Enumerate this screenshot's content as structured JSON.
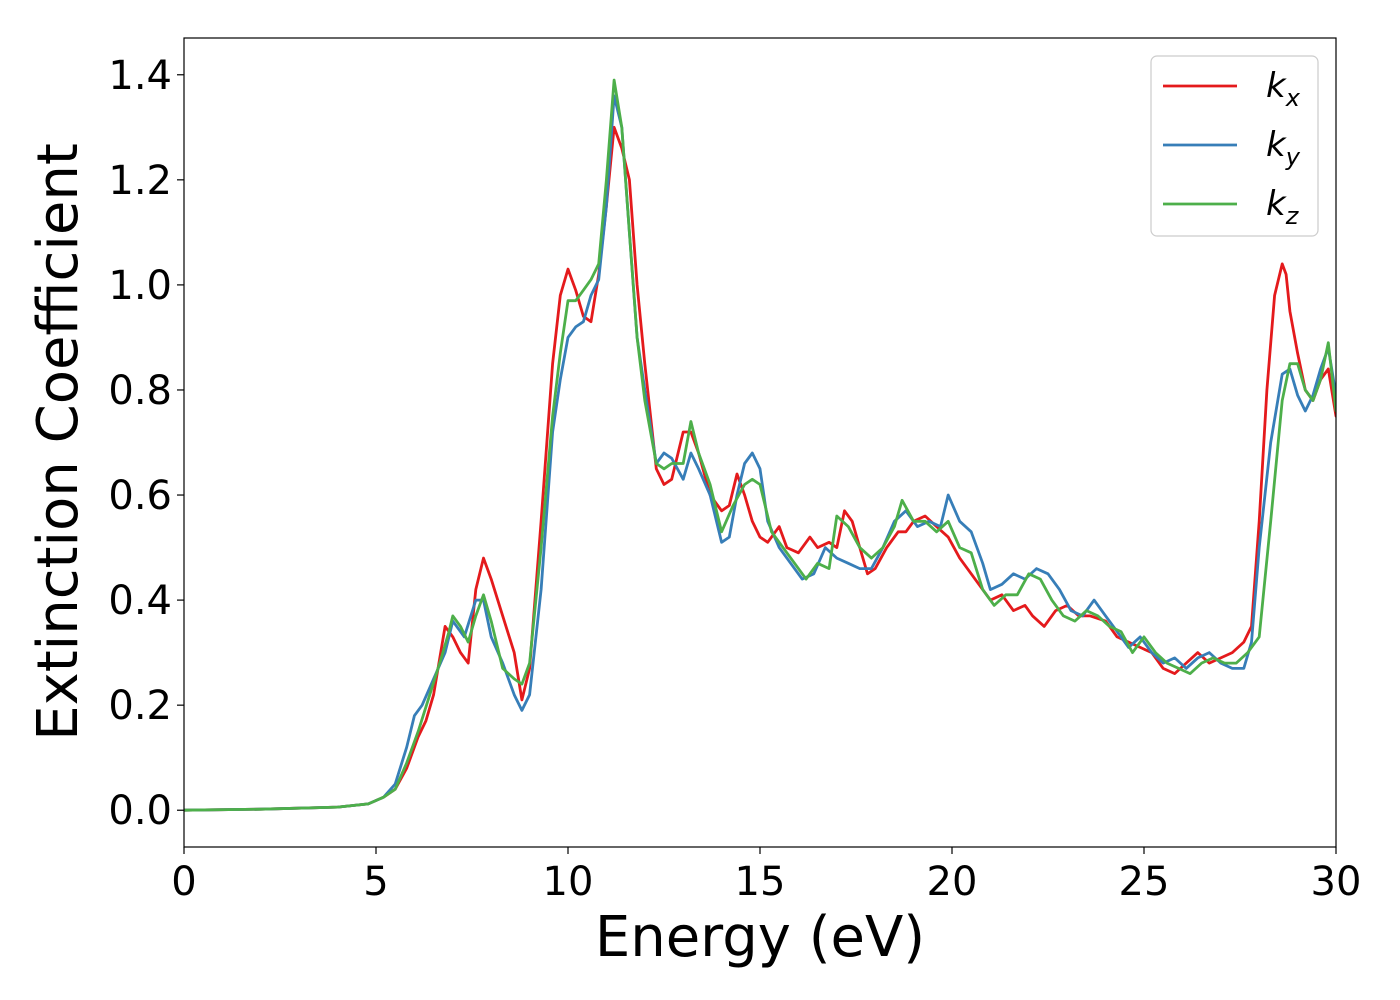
{
  "chart_data": {
    "type": "line",
    "title": "",
    "xlabel": "Energy (eV)",
    "ylabel": "Extinction Coefficient",
    "xlim": [
      0,
      30
    ],
    "ylim": [
      -0.07,
      1.47
    ],
    "xticks": [
      0,
      5,
      10,
      15,
      20,
      25,
      30
    ],
    "xtick_labels": [
      "0",
      "5",
      "10",
      "15",
      "20",
      "25",
      "30"
    ],
    "yticks": [
      0.0,
      0.2,
      0.4,
      0.6,
      0.8,
      1.0,
      1.2,
      1.4
    ],
    "ytick_labels": [
      "0.0",
      "0.2",
      "0.4",
      "0.6",
      "0.8",
      "1.0",
      "1.2",
      "1.4"
    ],
    "grid": false,
    "legend_position": "top-right",
    "series": [
      {
        "name": "k",
        "subscript": "x",
        "color": "#e41a1c",
        "x": [
          0,
          2,
          4,
          4.8,
          5.2,
          5.5,
          5.8,
          6.1,
          6.3,
          6.5,
          6.8,
          7.0,
          7.2,
          7.4,
          7.6,
          7.8,
          8.0,
          8.3,
          8.6,
          8.8,
          9.0,
          9.3,
          9.6,
          9.8,
          10.0,
          10.2,
          10.4,
          10.6,
          10.8,
          11.0,
          11.2,
          11.4,
          11.6,
          11.8,
          12.0,
          12.3,
          12.5,
          12.7,
          13.0,
          13.2,
          13.4,
          13.7,
          14.0,
          14.2,
          14.4,
          14.6,
          14.8,
          15.0,
          15.2,
          15.5,
          15.7,
          16.0,
          16.3,
          16.5,
          16.8,
          17.0,
          17.2,
          17.4,
          17.6,
          17.8,
          18.0,
          18.3,
          18.6,
          18.8,
          19.0,
          19.3,
          19.6,
          19.9,
          20.2,
          20.5,
          20.8,
          21.0,
          21.3,
          21.6,
          21.9,
          22.1,
          22.4,
          22.7,
          23.0,
          23.3,
          23.6,
          24.0,
          24.3,
          24.6,
          24.9,
          25.2,
          25.5,
          25.8,
          26.1,
          26.4,
          26.7,
          27.0,
          27.3,
          27.6,
          27.8,
          28.0,
          28.2,
          28.4,
          28.6,
          28.7,
          28.8,
          29.0,
          29.2,
          29.4,
          29.6,
          29.8,
          30.0
        ],
        "values": [
          0.0,
          0.002,
          0.006,
          0.012,
          0.025,
          0.04,
          0.08,
          0.14,
          0.17,
          0.22,
          0.35,
          0.33,
          0.3,
          0.28,
          0.42,
          0.48,
          0.44,
          0.37,
          0.3,
          0.21,
          0.27,
          0.55,
          0.85,
          0.98,
          1.03,
          0.99,
          0.94,
          0.93,
          1.02,
          1.15,
          1.3,
          1.26,
          1.2,
          1.0,
          0.85,
          0.65,
          0.62,
          0.63,
          0.72,
          0.72,
          0.68,
          0.6,
          0.57,
          0.58,
          0.64,
          0.6,
          0.55,
          0.52,
          0.51,
          0.54,
          0.5,
          0.49,
          0.52,
          0.5,
          0.51,
          0.5,
          0.57,
          0.55,
          0.5,
          0.45,
          0.46,
          0.5,
          0.53,
          0.53,
          0.55,
          0.56,
          0.54,
          0.52,
          0.48,
          0.45,
          0.42,
          0.4,
          0.41,
          0.38,
          0.39,
          0.37,
          0.35,
          0.38,
          0.39,
          0.37,
          0.37,
          0.36,
          0.33,
          0.32,
          0.31,
          0.3,
          0.27,
          0.26,
          0.28,
          0.3,
          0.28,
          0.29,
          0.3,
          0.32,
          0.35,
          0.55,
          0.8,
          0.98,
          1.04,
          1.02,
          0.95,
          0.87,
          0.8,
          0.78,
          0.82,
          0.84,
          0.75
        ]
      },
      {
        "name": "k",
        "subscript": "y",
        "color": "#377eb8",
        "x": [
          0,
          2,
          4,
          4.8,
          5.2,
          5.5,
          5.8,
          6.0,
          6.2,
          6.5,
          6.8,
          7.0,
          7.3,
          7.6,
          7.8,
          8.0,
          8.3,
          8.6,
          8.8,
          9.0,
          9.3,
          9.6,
          9.8,
          10.0,
          10.2,
          10.4,
          10.6,
          10.8,
          11.0,
          11.2,
          11.4,
          11.6,
          11.8,
          12.0,
          12.3,
          12.5,
          12.7,
          13.0,
          13.2,
          13.4,
          13.7,
          14.0,
          14.2,
          14.4,
          14.6,
          14.8,
          15.0,
          15.2,
          15.5,
          15.8,
          16.1,
          16.4,
          16.7,
          17.0,
          17.3,
          17.6,
          17.9,
          18.2,
          18.5,
          18.8,
          19.1,
          19.4,
          19.7,
          19.9,
          20.2,
          20.5,
          20.8,
          21.0,
          21.3,
          21.6,
          21.9,
          22.2,
          22.5,
          22.8,
          23.1,
          23.4,
          23.7,
          24.0,
          24.3,
          24.6,
          24.9,
          25.2,
          25.5,
          25.8,
          26.1,
          26.4,
          26.7,
          27.0,
          27.3,
          27.6,
          27.8,
          28.0,
          28.3,
          28.6,
          28.8,
          29.0,
          29.2,
          29.4,
          29.6,
          29.8,
          30.0
        ],
        "values": [
          0.0,
          0.002,
          0.006,
          0.012,
          0.025,
          0.05,
          0.12,
          0.18,
          0.2,
          0.25,
          0.3,
          0.36,
          0.33,
          0.4,
          0.4,
          0.33,
          0.28,
          0.22,
          0.19,
          0.22,
          0.42,
          0.72,
          0.82,
          0.9,
          0.92,
          0.93,
          0.98,
          1.01,
          1.15,
          1.36,
          1.3,
          1.1,
          0.9,
          0.8,
          0.66,
          0.68,
          0.67,
          0.63,
          0.68,
          0.65,
          0.6,
          0.51,
          0.52,
          0.6,
          0.66,
          0.68,
          0.65,
          0.55,
          0.5,
          0.47,
          0.44,
          0.45,
          0.5,
          0.48,
          0.47,
          0.46,
          0.46,
          0.5,
          0.55,
          0.57,
          0.54,
          0.55,
          0.54,
          0.6,
          0.55,
          0.53,
          0.47,
          0.42,
          0.43,
          0.45,
          0.44,
          0.46,
          0.45,
          0.42,
          0.38,
          0.37,
          0.4,
          0.37,
          0.34,
          0.31,
          0.33,
          0.3,
          0.28,
          0.29,
          0.27,
          0.29,
          0.3,
          0.28,
          0.27,
          0.27,
          0.32,
          0.5,
          0.7,
          0.83,
          0.84,
          0.79,
          0.76,
          0.79,
          0.84,
          0.88,
          0.79
        ]
      },
      {
        "name": "k",
        "subscript": "z",
        "color": "#4daf4a",
        "x": [
          0,
          2,
          4,
          4.8,
          5.2,
          5.5,
          5.8,
          6.1,
          6.4,
          6.7,
          6.9,
          7.0,
          7.2,
          7.4,
          7.6,
          7.8,
          8.0,
          8.3,
          8.6,
          8.8,
          9.0,
          9.3,
          9.6,
          9.8,
          10.0,
          10.2,
          10.4,
          10.6,
          10.8,
          11.0,
          11.2,
          11.4,
          11.6,
          11.8,
          12.0,
          12.3,
          12.5,
          12.7,
          13.0,
          13.2,
          13.4,
          13.7,
          14.0,
          14.3,
          14.6,
          14.8,
          15.0,
          15.3,
          15.6,
          15.9,
          16.2,
          16.5,
          16.8,
          17.0,
          17.3,
          17.6,
          17.9,
          18.2,
          18.5,
          18.7,
          19.0,
          19.3,
          19.6,
          19.9,
          20.2,
          20.5,
          20.8,
          21.1,
          21.4,
          21.7,
          22.0,
          22.3,
          22.6,
          22.9,
          23.2,
          23.5,
          23.8,
          24.1,
          24.4,
          24.7,
          25.0,
          25.3,
          25.6,
          25.9,
          26.2,
          26.5,
          26.8,
          27.1,
          27.4,
          27.7,
          28.0,
          28.3,
          28.6,
          28.8,
          29.0,
          29.2,
          29.4,
          29.6,
          29.8,
          30.0
        ],
        "values": [
          0.0,
          0.002,
          0.006,
          0.012,
          0.025,
          0.04,
          0.09,
          0.15,
          0.22,
          0.29,
          0.34,
          0.37,
          0.35,
          0.32,
          0.37,
          0.41,
          0.36,
          0.27,
          0.25,
          0.24,
          0.28,
          0.5,
          0.75,
          0.87,
          0.97,
          0.97,
          0.99,
          1.01,
          1.04,
          1.2,
          1.39,
          1.3,
          1.1,
          0.9,
          0.78,
          0.66,
          0.65,
          0.66,
          0.66,
          0.74,
          0.68,
          0.62,
          0.53,
          0.58,
          0.62,
          0.63,
          0.62,
          0.53,
          0.5,
          0.47,
          0.44,
          0.47,
          0.46,
          0.56,
          0.54,
          0.5,
          0.48,
          0.5,
          0.54,
          0.59,
          0.55,
          0.55,
          0.53,
          0.55,
          0.5,
          0.49,
          0.42,
          0.39,
          0.41,
          0.41,
          0.45,
          0.44,
          0.4,
          0.37,
          0.36,
          0.38,
          0.37,
          0.35,
          0.34,
          0.3,
          0.33,
          0.3,
          0.28,
          0.27,
          0.26,
          0.28,
          0.29,
          0.28,
          0.28,
          0.3,
          0.33,
          0.55,
          0.78,
          0.85,
          0.85,
          0.8,
          0.78,
          0.82,
          0.89,
          0.76
        ]
      }
    ]
  }
}
